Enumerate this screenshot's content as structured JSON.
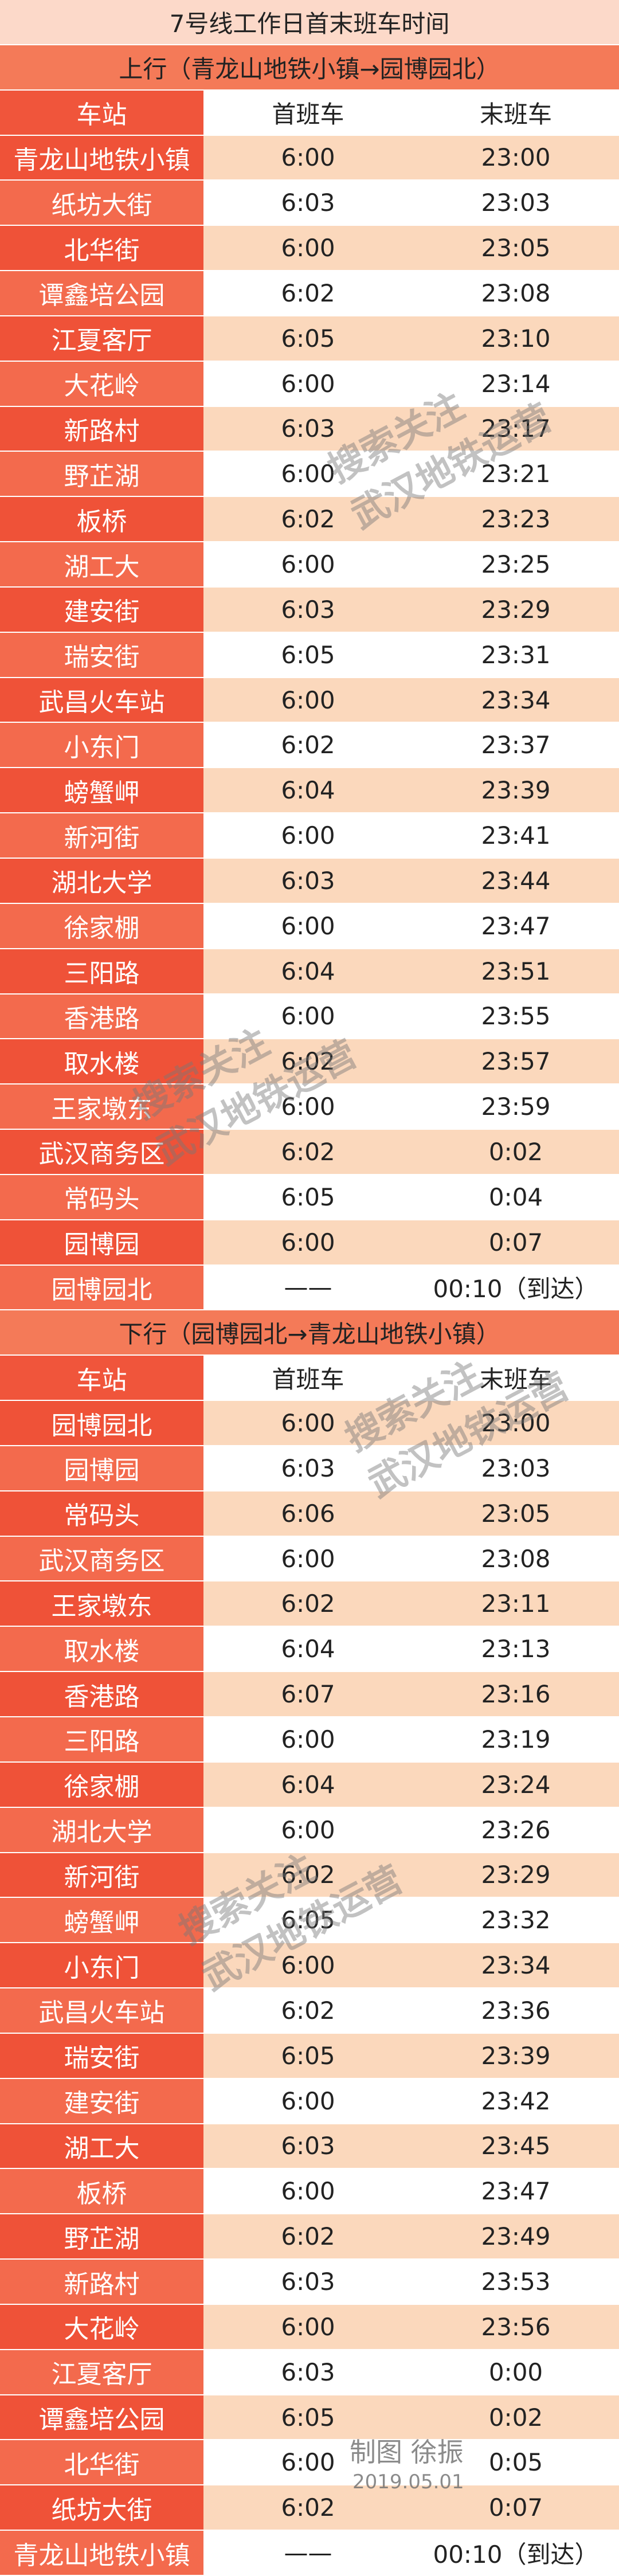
{
  "title": "7号线工作日首末班车时间",
  "sections": [
    {
      "header": "上行（青龙山地铁小镇→园博园北）",
      "columns": [
        "车站",
        "首班车",
        "末班车"
      ],
      "rows": [
        [
          "青龙山地铁小镇",
          "6:00",
          "23:00"
        ],
        [
          "纸坊大街",
          "6:03",
          "23:03"
        ],
        [
          "北华街",
          "6:00",
          "23:05"
        ],
        [
          "谭鑫培公园",
          "6:02",
          "23:08"
        ],
        [
          "江夏客厅",
          "6:05",
          "23:10"
        ],
        [
          "大花岭",
          "6:00",
          "23:14"
        ],
        [
          "新路村",
          "6:03",
          "23:17"
        ],
        [
          "野芷湖",
          "6:00",
          "23:21"
        ],
        [
          "板桥",
          "6:02",
          "23:23"
        ],
        [
          "湖工大",
          "6:00",
          "23:25"
        ],
        [
          "建安街",
          "6:03",
          "23:29"
        ],
        [
          "瑞安街",
          "6:05",
          "23:31"
        ],
        [
          "武昌火车站",
          "6:00",
          "23:34"
        ],
        [
          "小东门",
          "6:02",
          "23:37"
        ],
        [
          "螃蟹岬",
          "6:04",
          "23:39"
        ],
        [
          "新河街",
          "6:00",
          "23:41"
        ],
        [
          "湖北大学",
          "6:03",
          "23:44"
        ],
        [
          "徐家棚",
          "6:00",
          "23:47"
        ],
        [
          "三阳路",
          "6:04",
          "23:51"
        ],
        [
          "香港路",
          "6:00",
          "23:55"
        ],
        [
          "取水楼",
          "6:02",
          "23:57"
        ],
        [
          "王家墩东",
          "6:00",
          "23:59"
        ],
        [
          "武汉商务区",
          "6:02",
          "0:02"
        ],
        [
          "常码头",
          "6:05",
          "0:04"
        ],
        [
          "园博园",
          "6:00",
          "0:07"
        ],
        [
          "园博园北",
          "——",
          "00:10（到达）"
        ]
      ]
    },
    {
      "header": "下行（园博园北→青龙山地铁小镇）",
      "columns": [
        "车站",
        "首班车",
        "末班车"
      ],
      "rows": [
        [
          "园博园北",
          "6:00",
          "23:00"
        ],
        [
          "园博园",
          "6:03",
          "23:03"
        ],
        [
          "常码头",
          "6:06",
          "23:05"
        ],
        [
          "武汉商务区",
          "6:00",
          "23:08"
        ],
        [
          "王家墩东",
          "6:02",
          "23:11"
        ],
        [
          "取水楼",
          "6:04",
          "23:13"
        ],
        [
          "香港路",
          "6:07",
          "23:16"
        ],
        [
          "三阳路",
          "6:00",
          "23:19"
        ],
        [
          "徐家棚",
          "6:04",
          "23:24"
        ],
        [
          "湖北大学",
          "6:00",
          "23:26"
        ],
        [
          "新河街",
          "6:02",
          "23:29"
        ],
        [
          "螃蟹岬",
          "6:05",
          "23:32"
        ],
        [
          "小东门",
          "6:00",
          "23:34"
        ],
        [
          "武昌火车站",
          "6:02",
          "23:36"
        ],
        [
          "瑞安街",
          "6:05",
          "23:39"
        ],
        [
          "建安街",
          "6:00",
          "23:42"
        ],
        [
          "湖工大",
          "6:03",
          "23:45"
        ],
        [
          "板桥",
          "6:00",
          "23:47"
        ],
        [
          "野芷湖",
          "6:02",
          "23:49"
        ],
        [
          "新路村",
          "6:03",
          "23:53"
        ],
        [
          "大花岭",
          "6:00",
          "23:56"
        ],
        [
          "江夏客厅",
          "6:03",
          "0:00"
        ],
        [
          "谭鑫培公园",
          "6:05",
          "0:02"
        ],
        [
          "北华街",
          "6:00",
          "0:05"
        ],
        [
          "纸坊大街",
          "6:02",
          "0:07"
        ],
        [
          "青龙山地铁小镇",
          "——",
          "00:10（到达）"
        ]
      ]
    }
  ],
  "watermark": [
    "搜索关注",
    "武汉地铁运营"
  ],
  "credit": {
    "author": "制图 徐振",
    "date": "2019.05.01"
  }
}
